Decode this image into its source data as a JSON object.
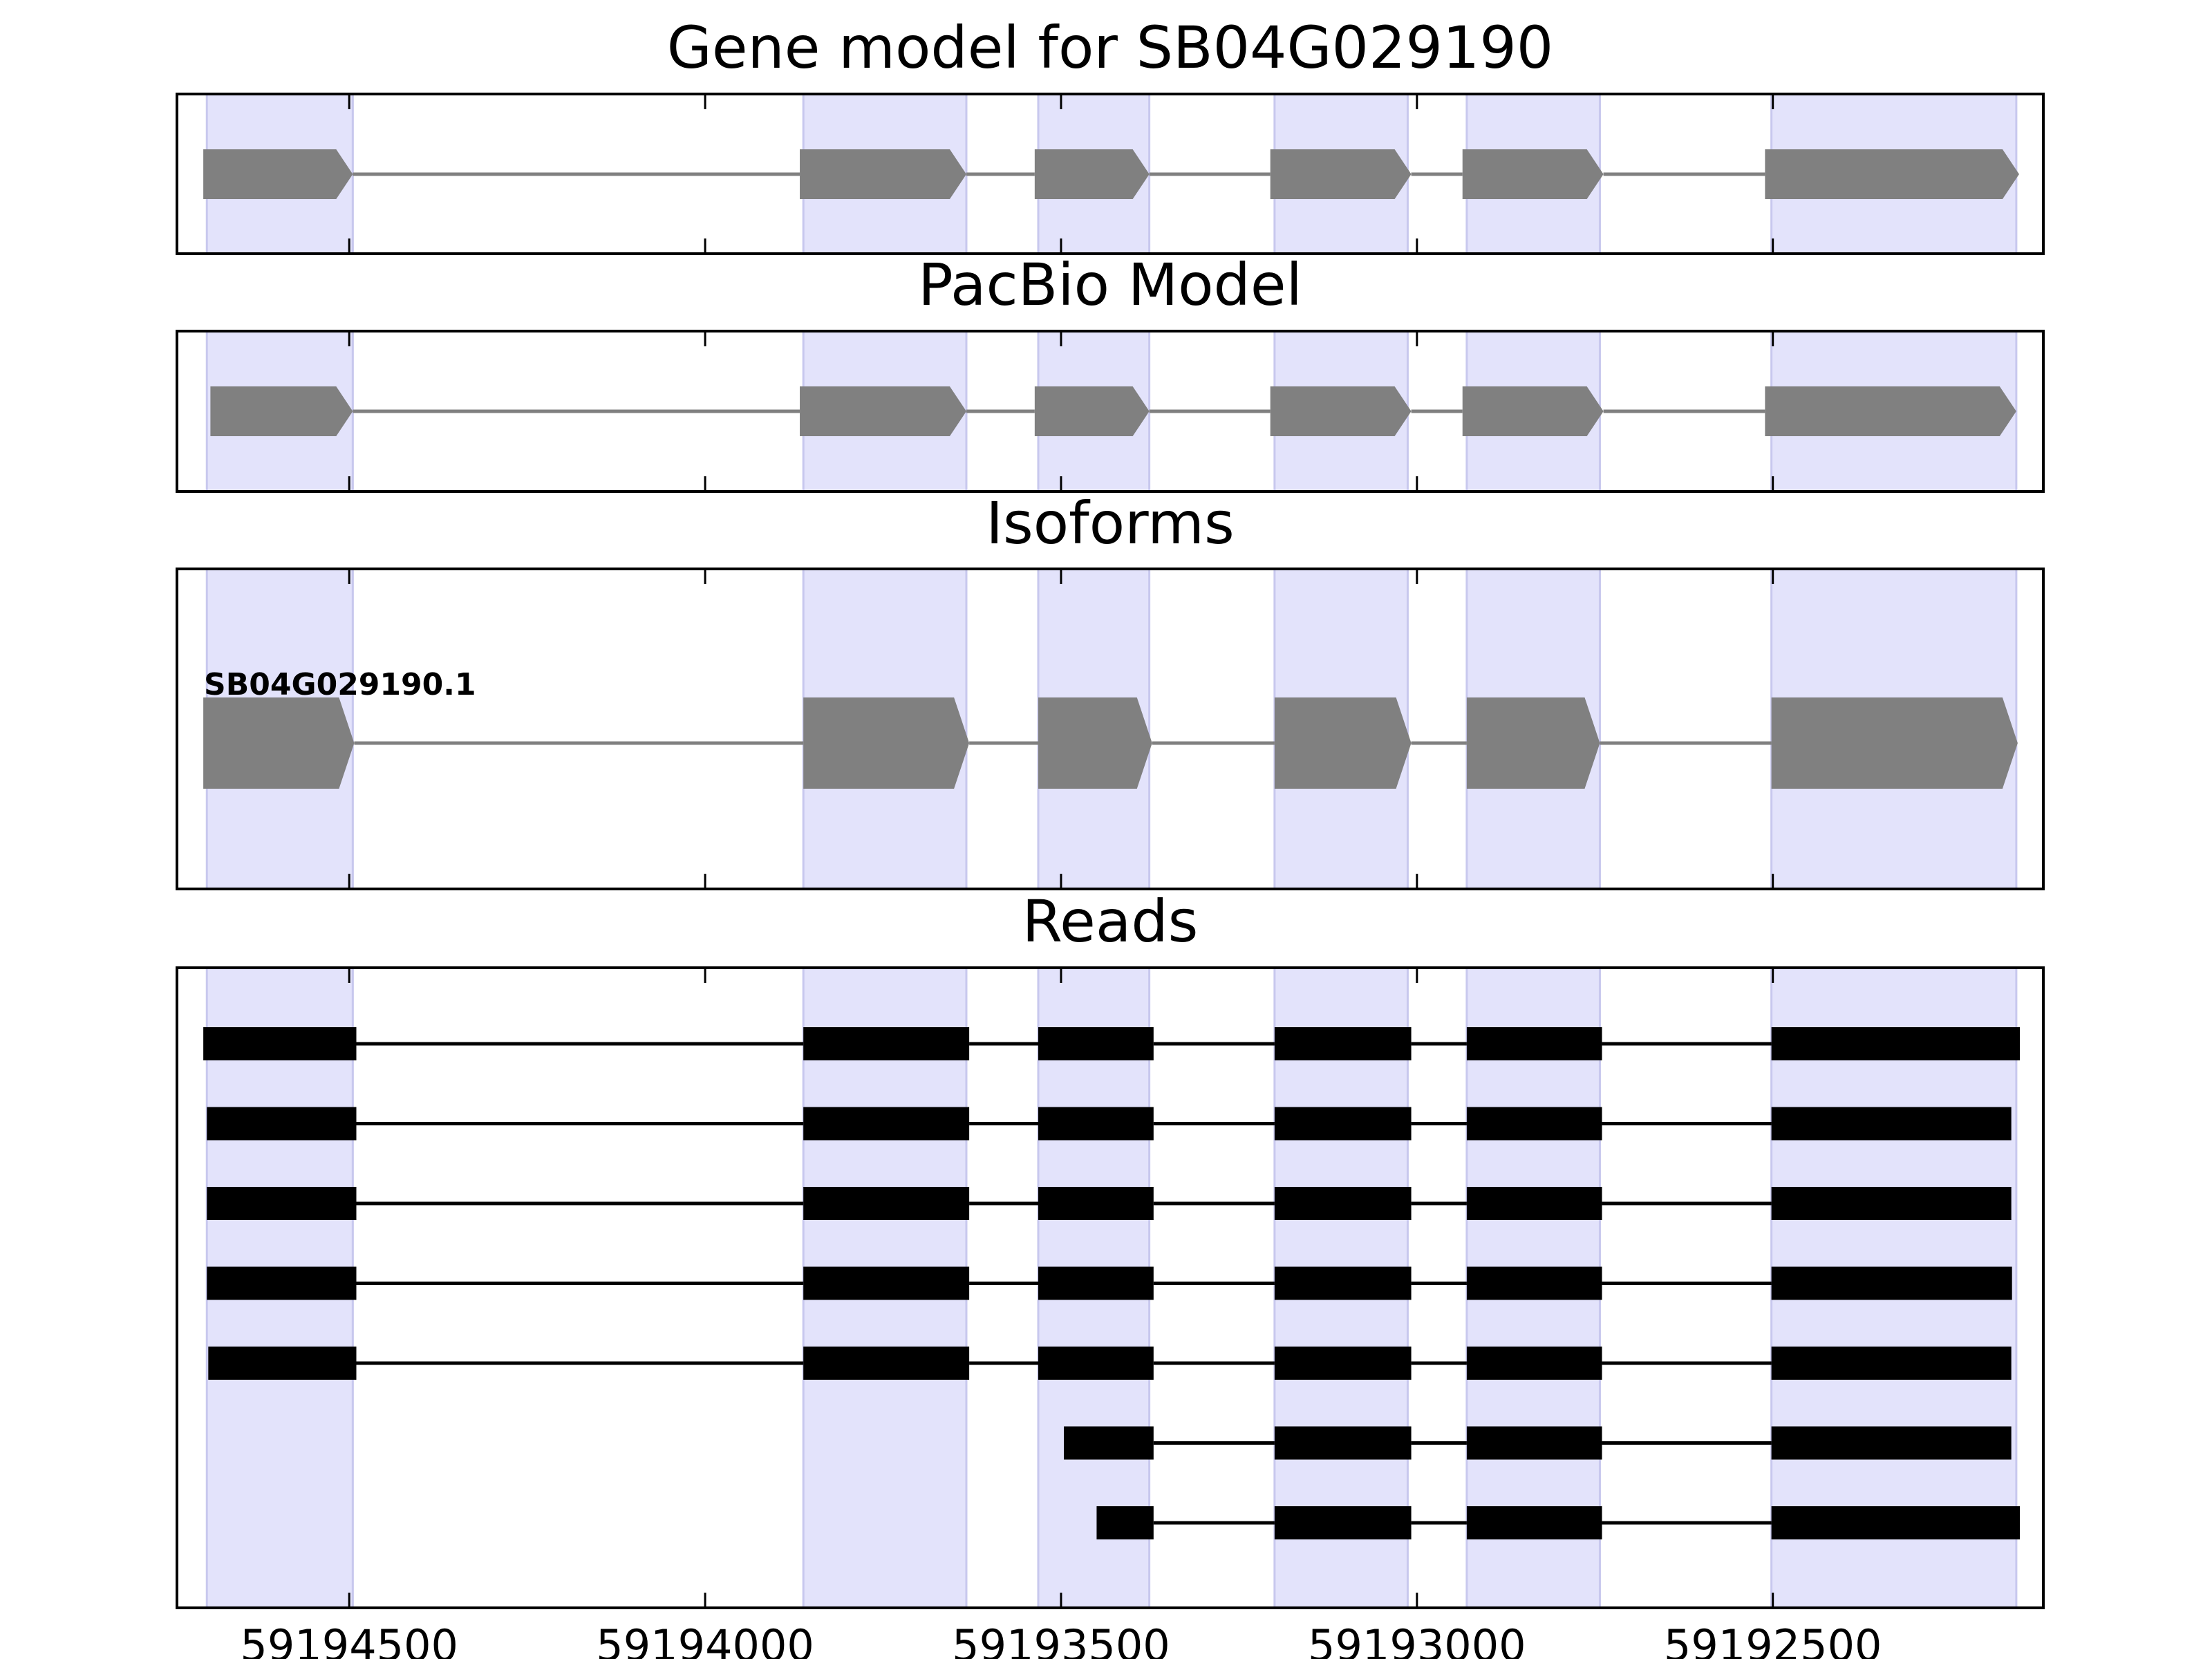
{
  "chart_data": {
    "type": "gene_model_tracks",
    "x_axis": {
      "reversed": true,
      "xlim": [
        59194742,
        59192120
      ],
      "ticks": [
        59194500,
        59194000,
        59193500,
        59193000,
        59192500
      ],
      "tick_labels": [
        "59194500",
        "59194000",
        "59193500",
        "59193000",
        "59192500"
      ]
    },
    "highlight_color": "#e3e3fb",
    "highlight_edge": "#c8c8ee",
    "highlight_regions": [
      [
        59194700,
        59194495
      ],
      [
        59193862,
        59193633
      ],
      [
        59193532,
        59193376
      ],
      [
        59193200,
        59193013
      ],
      [
        59192930,
        59192743
      ],
      [
        59192502,
        59192158
      ]
    ],
    "panels": [
      {
        "title": "Gene model for SB04G029190",
        "style": "gene",
        "color": "#808080",
        "exons": [
          [
            59194705,
            59194495
          ],
          [
            59193867,
            59193633
          ],
          [
            59193537,
            59193376
          ],
          [
            59193206,
            59193008
          ],
          [
            59192936,
            59192738
          ],
          [
            59192511,
            59192154
          ]
        ]
      },
      {
        "title": "PacBio Model",
        "style": "gene",
        "color": "#808080",
        "exons": [
          [
            59194695,
            59194495
          ],
          [
            59193867,
            59193633
          ],
          [
            59193537,
            59193376
          ],
          [
            59193206,
            59193008
          ],
          [
            59192936,
            59192738
          ],
          [
            59192511,
            59192158
          ]
        ]
      },
      {
        "title": "Isoforms",
        "style": "gene",
        "color": "#808080",
        "isoform_label": "SB04G029190.1",
        "exons": [
          [
            59194705,
            59194493
          ],
          [
            59193862,
            59193629
          ],
          [
            59193532,
            59193372
          ],
          [
            59193200,
            59193008
          ],
          [
            59192930,
            59192743
          ],
          [
            59192502,
            59192156
          ]
        ]
      },
      {
        "title": "Reads",
        "style": "reads",
        "color": "#000000",
        "reads": [
          [
            [
              59194705,
              59194490
            ],
            [
              59193862,
              59193629
            ],
            [
              59193532,
              59193370
            ],
            [
              59193200,
              59193008
            ],
            [
              59192930,
              59192740
            ],
            [
              59192502,
              59192153
            ]
          ],
          [
            [
              59194700,
              59194490
            ],
            [
              59193862,
              59193629
            ],
            [
              59193532,
              59193370
            ],
            [
              59193200,
              59193008
            ],
            [
              59192930,
              59192740
            ],
            [
              59192502,
              59192165
            ]
          ],
          [
            [
              59194700,
              59194490
            ],
            [
              59193862,
              59193629
            ],
            [
              59193532,
              59193370
            ],
            [
              59193200,
              59193008
            ],
            [
              59192930,
              59192740
            ],
            [
              59192502,
              59192165
            ]
          ],
          [
            [
              59194700,
              59194490
            ],
            [
              59193862,
              59193629
            ],
            [
              59193532,
              59193370
            ],
            [
              59193200,
              59193008
            ],
            [
              59192930,
              59192740
            ],
            [
              59192502,
              59192164
            ]
          ],
          [
            [
              59194698,
              59194490
            ],
            [
              59193862,
              59193629
            ],
            [
              59193532,
              59193370
            ],
            [
              59193200,
              59193008
            ],
            [
              59192930,
              59192740
            ],
            [
              59192502,
              59192165
            ]
          ],
          [
            [
              59193496,
              59193370
            ],
            [
              59193200,
              59193008
            ],
            [
              59192930,
              59192740
            ],
            [
              59192502,
              59192165
            ]
          ],
          [
            [
              59193450,
              59193370
            ],
            [
              59193200,
              59193008
            ],
            [
              59192930,
              59192740
            ],
            [
              59192502,
              59192153
            ]
          ]
        ]
      }
    ]
  }
}
